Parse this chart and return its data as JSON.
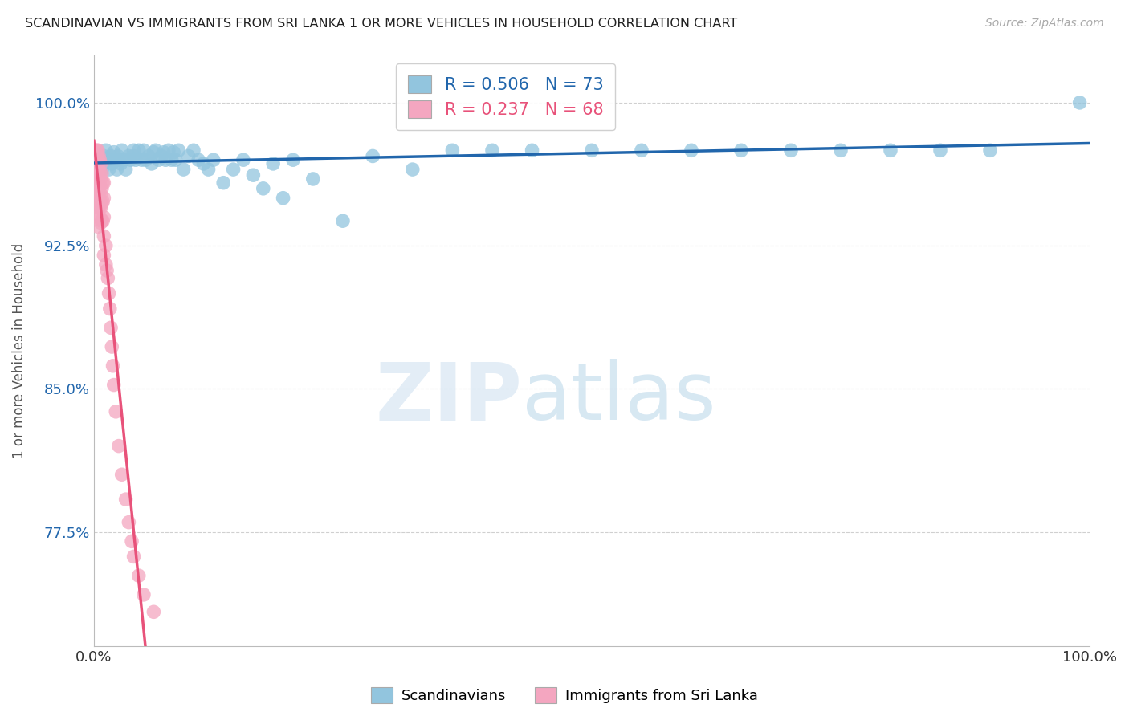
{
  "title": "SCANDINAVIAN VS IMMIGRANTS FROM SRI LANKA 1 OR MORE VEHICLES IN HOUSEHOLD CORRELATION CHART",
  "source": "Source: ZipAtlas.com",
  "ylabel": "1 or more Vehicles in Household",
  "xlim": [
    0.0,
    1.0
  ],
  "ylim": [
    0.715,
    1.025
  ],
  "yticks": [
    0.775,
    0.85,
    0.925,
    1.0
  ],
  "ytick_labels": [
    "77.5%",
    "85.0%",
    "92.5%",
    "100.0%"
  ],
  "xticks": [
    0.0,
    0.2,
    0.4,
    0.6,
    0.8,
    1.0
  ],
  "xtick_labels": [
    "0.0%",
    "",
    "",
    "",
    "",
    "100.0%"
  ],
  "blue_R": 0.506,
  "blue_N": 73,
  "pink_R": 0.237,
  "pink_N": 68,
  "blue_color": "#92c5de",
  "pink_color": "#f4a6c0",
  "blue_line_color": "#2166ac",
  "pink_line_color": "#e8527a",
  "legend_blue_label": "Scandinavians",
  "legend_pink_label": "Immigrants from Sri Lanka",
  "blue_x": [
    0.005,
    0.008,
    0.01,
    0.01,
    0.012,
    0.013,
    0.015,
    0.016,
    0.017,
    0.018,
    0.02,
    0.022,
    0.023,
    0.024,
    0.025,
    0.027,
    0.028,
    0.03,
    0.032,
    0.035,
    0.037,
    0.04,
    0.04,
    0.042,
    0.045,
    0.048,
    0.05,
    0.052,
    0.055,
    0.058,
    0.06,
    0.062,
    0.065,
    0.068,
    0.07,
    0.072,
    0.075,
    0.078,
    0.08,
    0.082,
    0.085,
    0.09,
    0.095,
    0.1,
    0.105,
    0.11,
    0.115,
    0.12,
    0.13,
    0.14,
    0.15,
    0.16,
    0.17,
    0.18,
    0.19,
    0.2,
    0.22,
    0.25,
    0.28,
    0.32,
    0.36,
    0.4,
    0.44,
    0.5,
    0.55,
    0.6,
    0.65,
    0.7,
    0.75,
    0.8,
    0.85,
    0.9,
    0.99
  ],
  "blue_y": [
    0.97,
    0.965,
    0.972,
    0.968,
    0.975,
    0.97,
    0.965,
    0.97,
    0.972,
    0.968,
    0.974,
    0.97,
    0.965,
    0.972,
    0.97,
    0.968,
    0.975,
    0.97,
    0.965,
    0.972,
    0.97,
    0.975,
    0.972,
    0.97,
    0.975,
    0.97,
    0.975,
    0.97,
    0.972,
    0.968,
    0.974,
    0.975,
    0.97,
    0.972,
    0.974,
    0.97,
    0.975,
    0.97,
    0.974,
    0.97,
    0.975,
    0.965,
    0.972,
    0.975,
    0.97,
    0.968,
    0.965,
    0.97,
    0.958,
    0.965,
    0.97,
    0.962,
    0.955,
    0.968,
    0.95,
    0.97,
    0.96,
    0.938,
    0.972,
    0.965,
    0.975,
    0.975,
    0.975,
    0.975,
    0.975,
    0.975,
    0.975,
    0.975,
    0.975,
    0.975,
    0.975,
    0.975,
    1.0
  ],
  "pink_x": [
    0.001,
    0.001,
    0.002,
    0.002,
    0.002,
    0.002,
    0.003,
    0.003,
    0.003,
    0.003,
    0.003,
    0.003,
    0.004,
    0.004,
    0.004,
    0.004,
    0.004,
    0.004,
    0.004,
    0.004,
    0.004,
    0.005,
    0.005,
    0.005,
    0.005,
    0.005,
    0.006,
    0.006,
    0.006,
    0.006,
    0.006,
    0.007,
    0.007,
    0.007,
    0.007,
    0.007,
    0.008,
    0.008,
    0.008,
    0.008,
    0.009,
    0.009,
    0.009,
    0.01,
    0.01,
    0.01,
    0.01,
    0.01,
    0.012,
    0.012,
    0.013,
    0.014,
    0.015,
    0.016,
    0.017,
    0.018,
    0.019,
    0.02,
    0.022,
    0.025,
    0.028,
    0.032,
    0.035,
    0.038,
    0.04,
    0.045,
    0.05,
    0.06
  ],
  "pink_y": [
    0.968,
    0.975,
    0.972,
    0.965,
    0.96,
    0.955,
    0.975,
    0.972,
    0.968,
    0.963,
    0.958,
    0.953,
    0.975,
    0.97,
    0.965,
    0.96,
    0.955,
    0.95,
    0.945,
    0.94,
    0.935,
    0.972,
    0.965,
    0.958,
    0.952,
    0.945,
    0.97,
    0.963,
    0.956,
    0.948,
    0.94,
    0.968,
    0.96,
    0.952,
    0.945,
    0.937,
    0.963,
    0.955,
    0.947,
    0.938,
    0.958,
    0.948,
    0.938,
    0.958,
    0.95,
    0.94,
    0.93,
    0.92,
    0.925,
    0.915,
    0.912,
    0.908,
    0.9,
    0.892,
    0.882,
    0.872,
    0.862,
    0.852,
    0.838,
    0.82,
    0.805,
    0.792,
    0.78,
    0.77,
    0.762,
    0.752,
    0.742,
    0.733
  ],
  "watermark_zip": "ZIP",
  "watermark_atlas": "atlas",
  "background_color": "#ffffff",
  "grid_color": "#d0d0d0"
}
